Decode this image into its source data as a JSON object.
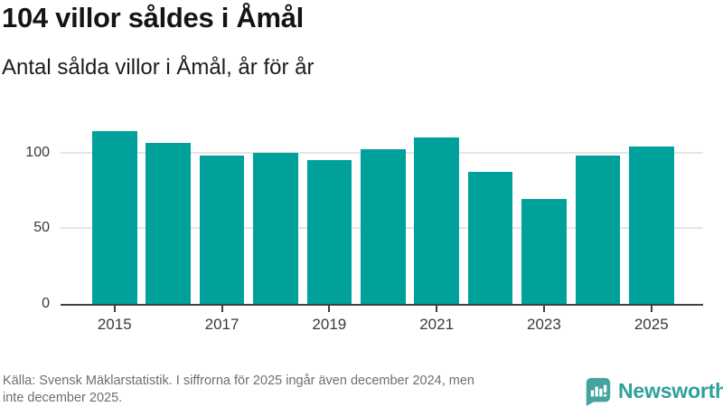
{
  "header": {
    "title": "104 villor såldes i Åmål",
    "subtitle": "Antal sålda villor i Åmål, år för år"
  },
  "chart_data": {
    "type": "bar",
    "categories": [
      "2015",
      "2016",
      "2017",
      "2018",
      "2019",
      "2020",
      "2021",
      "2022",
      "2023",
      "2024",
      "2025"
    ],
    "values": [
      114,
      106,
      98,
      100,
      95,
      102,
      110,
      87,
      69,
      98,
      104
    ],
    "title": "104 villor såldes i Åmål",
    "subtitle": "Antal sålda villor i Åmål, år för år",
    "xlabel": "",
    "ylabel": "",
    "yticks": [
      0,
      50,
      100
    ],
    "xtick_labels": [
      "2015",
      "2017",
      "2019",
      "2021",
      "2023",
      "2025"
    ],
    "ylim": [
      0,
      120
    ],
    "grid": "horizontal-only",
    "legend": "none",
    "bar_color": "#00a19b"
  },
  "footer": {
    "source_line1": "Källa: Svensk Mäklarstatistik. I siffrorna för 2025 ingår även december 2024, men",
    "source_line2": "inte december 2025.",
    "logo_text": "Newsworthy"
  },
  "colors": {
    "bar": "#00a19b",
    "logo_icon": "#43a49f",
    "logo_text": "#2ea19b",
    "title_text": "#141414",
    "axis_text": "#3a3a3a",
    "axis_line": "#404040",
    "gridline": "#e5e5e5",
    "source_text": "#6e6e6e"
  }
}
